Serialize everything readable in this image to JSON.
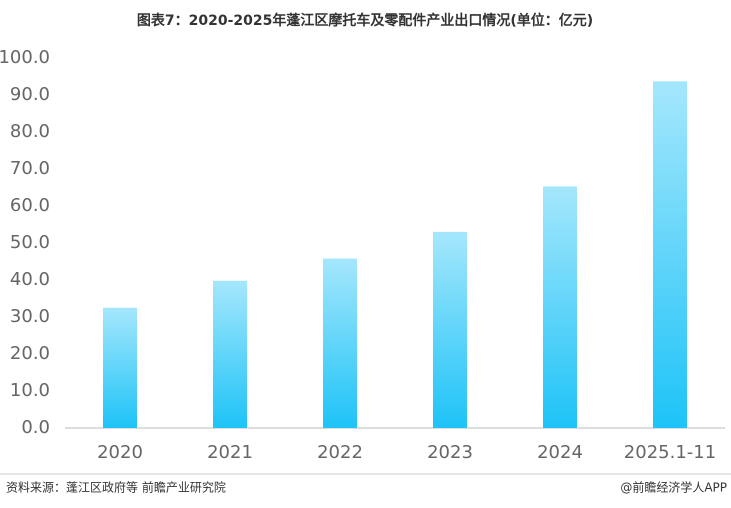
{
  "chart_data": {
    "type": "bar",
    "title": "图表7：2020-2025年蓬江区摩托车及零配件产业出口情况(单位：亿元)",
    "categories": [
      "2020",
      "2021",
      "2022",
      "2023",
      "2024",
      "2025.1-11"
    ],
    "values": [
      32.5,
      39.8,
      45.8,
      53.0,
      65.3,
      93.7
    ],
    "color": "#1ec3f7",
    "ylim": [
      0,
      100
    ],
    "yticks": [
      {
        "value": 0,
        "label": "0.0"
      },
      {
        "value": 10,
        "label": "10.0"
      },
      {
        "value": 20,
        "label": "20.0"
      },
      {
        "value": 30,
        "label": "30.0"
      },
      {
        "value": 40,
        "label": "40.0"
      },
      {
        "value": 50,
        "label": "50.0"
      },
      {
        "value": 60,
        "label": "60.0"
      },
      {
        "value": 70,
        "label": "70.0"
      },
      {
        "value": 80,
        "label": "80.0"
      },
      {
        "value": 90,
        "label": "90.0"
      },
      {
        "value": 100,
        "label": "100.0"
      }
    ],
    "grid": false,
    "source": "资料来源：蓬江区政府等 前瞻产业研究院",
    "credit": "@前瞻经济学人APP"
  }
}
